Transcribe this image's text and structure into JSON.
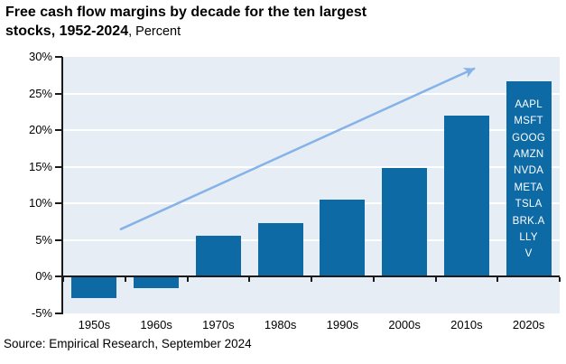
{
  "title": {
    "line1": "Free cash flow margins by decade for the ten largest",
    "line2_bold": "stocks, 1952-2024",
    "line2_suffix": ", Percent"
  },
  "source": "Source: Empirical Research, September 2024",
  "chart_data": {
    "type": "bar",
    "title": "Free cash flow margins by decade for the ten largest stocks, 1952-2024",
    "units_label": "Percent",
    "categories": [
      "1950s",
      "1960s",
      "1970s",
      "1980s",
      "1990s",
      "2000s",
      "2010s",
      "2020s"
    ],
    "values": [
      -2.9,
      -1.5,
      5.6,
      7.3,
      10.5,
      14.9,
      22.0,
      26.7
    ],
    "ylim": [
      -5,
      30
    ],
    "ytick_interval": 5,
    "ytick_labels": [
      "30%",
      "25%",
      "20%",
      "15%",
      "10%",
      "5%",
      "0%",
      "-5%"
    ],
    "ytick_values": [
      30,
      25,
      20,
      15,
      10,
      5,
      0,
      -5
    ],
    "gridlines_at": [
      25,
      20,
      15,
      10,
      5
    ],
    "grid": true,
    "legend_position": "none",
    "bar_annotation": {
      "category": "2020s",
      "tickers": [
        "AAPL",
        "MSFT",
        "GOOG",
        "AMZN",
        "NVDA",
        "META",
        "TSLA",
        "BRK.A",
        "LLY",
        "V"
      ]
    },
    "trend_arrow": {
      "from_category_x": 0.93,
      "from_value": 6.5,
      "to_category_x": 6.62,
      "to_value": 28.4
    },
    "colors": {
      "bar": "#0d6aa5",
      "plot_bg": "#e6edf4",
      "gridline": "#ffffff",
      "axis": "#1a1a1a",
      "arrow": "#85b2e8",
      "ticker_text": "#ffffff"
    }
  }
}
